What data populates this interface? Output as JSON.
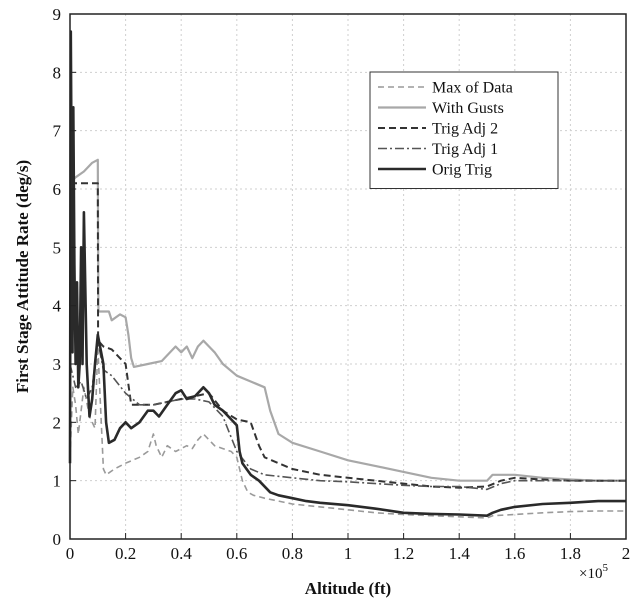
{
  "chart_data": {
    "type": "line",
    "xlabel": "Altitude (ft)",
    "ylabel": "First Stage Attitude Rate (deg/s)",
    "x_multiplier_label": "×10",
    "x_multiplier_exp": "5",
    "xlim": [
      0,
      2
    ],
    "ylim": [
      0,
      9
    ],
    "x_ticks": [
      0,
      0.2,
      0.4,
      0.6,
      0.8,
      1,
      1.2,
      1.4,
      1.6,
      1.8,
      2
    ],
    "x_tick_labels": [
      "0",
      "0.2",
      "0.4",
      "0.6",
      "0.8",
      "1",
      "1.2",
      "1.4",
      "1.6",
      "1.8",
      "2"
    ],
    "y_ticks": [
      0,
      1,
      2,
      3,
      4,
      5,
      6,
      7,
      8,
      9
    ],
    "y_tick_labels": [
      "0",
      "1",
      "2",
      "3",
      "4",
      "5",
      "6",
      "7",
      "8",
      "9"
    ],
    "grid": true,
    "legend_position": "top-right",
    "series": [
      {
        "name": "Max of Data",
        "color": "#9a9a9a",
        "dash": "6,4",
        "width": 1.6,
        "points": [
          [
            0,
            1.4
          ],
          [
            0.01,
            2.6
          ],
          [
            0.02,
            2.3
          ],
          [
            0.03,
            1.8
          ],
          [
            0.04,
            2.2
          ],
          [
            0.05,
            2.6
          ],
          [
            0.07,
            2.1
          ],
          [
            0.09,
            1.9
          ],
          [
            0.1,
            3.3
          ],
          [
            0.12,
            1.2
          ],
          [
            0.13,
            1.1
          ],
          [
            0.16,
            1.2
          ],
          [
            0.2,
            1.3
          ],
          [
            0.25,
            1.4
          ],
          [
            0.28,
            1.5
          ],
          [
            0.3,
            1.8
          ],
          [
            0.31,
            1.6
          ],
          [
            0.33,
            1.4
          ],
          [
            0.35,
            1.6
          ],
          [
            0.38,
            1.5
          ],
          [
            0.42,
            1.6
          ],
          [
            0.44,
            1.55
          ],
          [
            0.46,
            1.7
          ],
          [
            0.48,
            1.8
          ],
          [
            0.5,
            1.7
          ],
          [
            0.52,
            1.6
          ],
          [
            0.55,
            1.55
          ],
          [
            0.58,
            1.5
          ],
          [
            0.6,
            1.4
          ],
          [
            0.62,
            1.0
          ],
          [
            0.64,
            0.8
          ],
          [
            0.66,
            0.75
          ],
          [
            0.7,
            0.7
          ],
          [
            0.75,
            0.65
          ],
          [
            0.8,
            0.6
          ],
          [
            0.9,
            0.55
          ],
          [
            1.0,
            0.5
          ],
          [
            1.1,
            0.45
          ],
          [
            1.2,
            0.42
          ],
          [
            1.3,
            0.4
          ],
          [
            1.4,
            0.38
          ],
          [
            1.5,
            0.36
          ],
          [
            1.52,
            0.4
          ],
          [
            1.6,
            0.42
          ],
          [
            1.7,
            0.45
          ],
          [
            1.8,
            0.47
          ],
          [
            1.9,
            0.48
          ],
          [
            2.0,
            0.48
          ]
        ]
      },
      {
        "name": "With Gusts",
        "color": "#a8a8a8",
        "dash": "",
        "width": 2.2,
        "points": [
          [
            0,
            6.1
          ],
          [
            0.02,
            6.2
          ],
          [
            0.05,
            6.3
          ],
          [
            0.08,
            6.45
          ],
          [
            0.1,
            6.5
          ],
          [
            0.102,
            3.9
          ],
          [
            0.14,
            3.9
          ],
          [
            0.15,
            3.75
          ],
          [
            0.18,
            3.85
          ],
          [
            0.2,
            3.8
          ],
          [
            0.21,
            3.5
          ],
          [
            0.22,
            3.1
          ],
          [
            0.23,
            2.95
          ],
          [
            0.28,
            3.0
          ],
          [
            0.33,
            3.05
          ],
          [
            0.36,
            3.2
          ],
          [
            0.38,
            3.3
          ],
          [
            0.4,
            3.2
          ],
          [
            0.42,
            3.3
          ],
          [
            0.44,
            3.1
          ],
          [
            0.46,
            3.3
          ],
          [
            0.48,
            3.4
          ],
          [
            0.5,
            3.3
          ],
          [
            0.52,
            3.2
          ],
          [
            0.55,
            3.0
          ],
          [
            0.6,
            2.8
          ],
          [
            0.65,
            2.7
          ],
          [
            0.7,
            2.6
          ],
          [
            0.72,
            2.2
          ],
          [
            0.75,
            1.8
          ],
          [
            0.8,
            1.65
          ],
          [
            0.9,
            1.5
          ],
          [
            1.0,
            1.35
          ],
          [
            1.1,
            1.25
          ],
          [
            1.2,
            1.15
          ],
          [
            1.3,
            1.05
          ],
          [
            1.4,
            1.0
          ],
          [
            1.5,
            1.0
          ],
          [
            1.52,
            1.1
          ],
          [
            1.6,
            1.1
          ],
          [
            1.7,
            1.05
          ],
          [
            1.8,
            1.02
          ],
          [
            1.9,
            1.0
          ],
          [
            2.0,
            1.0
          ]
        ]
      },
      {
        "name": "Trig Adj 2",
        "color": "#333333",
        "dash": "7,4",
        "width": 2.0,
        "points": [
          [
            0,
            6.1
          ],
          [
            0.05,
            6.1
          ],
          [
            0.1,
            6.1
          ],
          [
            0.101,
            3.4
          ],
          [
            0.12,
            3.3
          ],
          [
            0.15,
            3.25
          ],
          [
            0.18,
            3.1
          ],
          [
            0.2,
            3.0
          ],
          [
            0.22,
            2.3
          ],
          [
            0.3,
            2.3
          ],
          [
            0.35,
            2.35
          ],
          [
            0.4,
            2.4
          ],
          [
            0.45,
            2.45
          ],
          [
            0.5,
            2.5
          ],
          [
            0.55,
            2.2
          ],
          [
            0.6,
            2.05
          ],
          [
            0.65,
            2.0
          ],
          [
            0.68,
            1.6
          ],
          [
            0.7,
            1.4
          ],
          [
            0.75,
            1.3
          ],
          [
            0.8,
            1.2
          ],
          [
            0.9,
            1.1
          ],
          [
            1.0,
            1.05
          ],
          [
            1.1,
            1.0
          ],
          [
            1.2,
            0.95
          ],
          [
            1.3,
            0.9
          ],
          [
            1.4,
            0.88
          ],
          [
            1.5,
            0.9
          ],
          [
            1.55,
            1.0
          ],
          [
            1.6,
            1.05
          ],
          [
            1.7,
            1.02
          ],
          [
            1.8,
            1.0
          ],
          [
            1.9,
            1.0
          ],
          [
            2.0,
            1.0
          ]
        ]
      },
      {
        "name": "Trig Adj 1",
        "color": "#555555",
        "dash": "9,3,2,3",
        "width": 1.6,
        "points": [
          [
            0,
            3.0
          ],
          [
            0.02,
            2.6
          ],
          [
            0.04,
            2.7
          ],
          [
            0.06,
            2.4
          ],
          [
            0.08,
            2.6
          ],
          [
            0.1,
            3.4
          ],
          [
            0.12,
            2.9
          ],
          [
            0.15,
            2.8
          ],
          [
            0.2,
            2.5
          ],
          [
            0.25,
            2.3
          ],
          [
            0.3,
            2.3
          ],
          [
            0.35,
            2.35
          ],
          [
            0.4,
            2.4
          ],
          [
            0.45,
            2.4
          ],
          [
            0.5,
            2.35
          ],
          [
            0.55,
            2.1
          ],
          [
            0.6,
            1.5
          ],
          [
            0.65,
            1.2
          ],
          [
            0.7,
            1.1
          ],
          [
            0.8,
            1.05
          ],
          [
            0.9,
            1.0
          ],
          [
            1.0,
            0.98
          ],
          [
            1.1,
            0.95
          ],
          [
            1.2,
            0.92
          ],
          [
            1.3,
            0.9
          ],
          [
            1.4,
            0.9
          ],
          [
            1.5,
            0.85
          ],
          [
            1.55,
            0.95
          ],
          [
            1.6,
            1.0
          ],
          [
            1.7,
            1.0
          ],
          [
            1.8,
            1.0
          ],
          [
            1.9,
            1.0
          ],
          [
            2.0,
            1.0
          ]
        ]
      },
      {
        "name": "Orig Trig",
        "color": "#2a2a2a",
        "dash": "",
        "width": 2.6,
        "points": [
          [
            0,
            1.3
          ],
          [
            0.003,
            8.7
          ],
          [
            0.006,
            6.0
          ],
          [
            0.009,
            3.2
          ],
          [
            0.012,
            7.4
          ],
          [
            0.016,
            4.7
          ],
          [
            0.02,
            3.0
          ],
          [
            0.025,
            4.4
          ],
          [
            0.03,
            2.6
          ],
          [
            0.035,
            3.0
          ],
          [
            0.04,
            5.0
          ],
          [
            0.045,
            3.0
          ],
          [
            0.05,
            5.6
          ],
          [
            0.06,
            3.0
          ],
          [
            0.07,
            2.1
          ],
          [
            0.08,
            2.4
          ],
          [
            0.09,
            3.0
          ],
          [
            0.1,
            3.5
          ],
          [
            0.12,
            3.0
          ],
          [
            0.13,
            2.0
          ],
          [
            0.14,
            1.65
          ],
          [
            0.16,
            1.7
          ],
          [
            0.18,
            1.9
          ],
          [
            0.2,
            2.0
          ],
          [
            0.22,
            1.9
          ],
          [
            0.25,
            2.0
          ],
          [
            0.28,
            2.2
          ],
          [
            0.3,
            2.2
          ],
          [
            0.32,
            2.1
          ],
          [
            0.35,
            2.3
          ],
          [
            0.38,
            2.5
          ],
          [
            0.4,
            2.55
          ],
          [
            0.42,
            2.4
          ],
          [
            0.45,
            2.45
          ],
          [
            0.48,
            2.6
          ],
          [
            0.5,
            2.5
          ],
          [
            0.52,
            2.3
          ],
          [
            0.55,
            2.2
          ],
          [
            0.58,
            2.05
          ],
          [
            0.6,
            1.95
          ],
          [
            0.61,
            1.5
          ],
          [
            0.62,
            1.3
          ],
          [
            0.65,
            1.1
          ],
          [
            0.68,
            1.0
          ],
          [
            0.72,
            0.8
          ],
          [
            0.75,
            0.75
          ],
          [
            0.8,
            0.7
          ],
          [
            0.85,
            0.65
          ],
          [
            0.9,
            0.62
          ],
          [
            1.0,
            0.58
          ],
          [
            1.1,
            0.52
          ],
          [
            1.2,
            0.45
          ],
          [
            1.3,
            0.43
          ],
          [
            1.4,
            0.42
          ],
          [
            1.5,
            0.4
          ],
          [
            1.52,
            0.45
          ],
          [
            1.55,
            0.5
          ],
          [
            1.6,
            0.55
          ],
          [
            1.7,
            0.6
          ],
          [
            1.8,
            0.62
          ],
          [
            1.9,
            0.65
          ],
          [
            2.0,
            0.65
          ]
        ]
      }
    ]
  }
}
